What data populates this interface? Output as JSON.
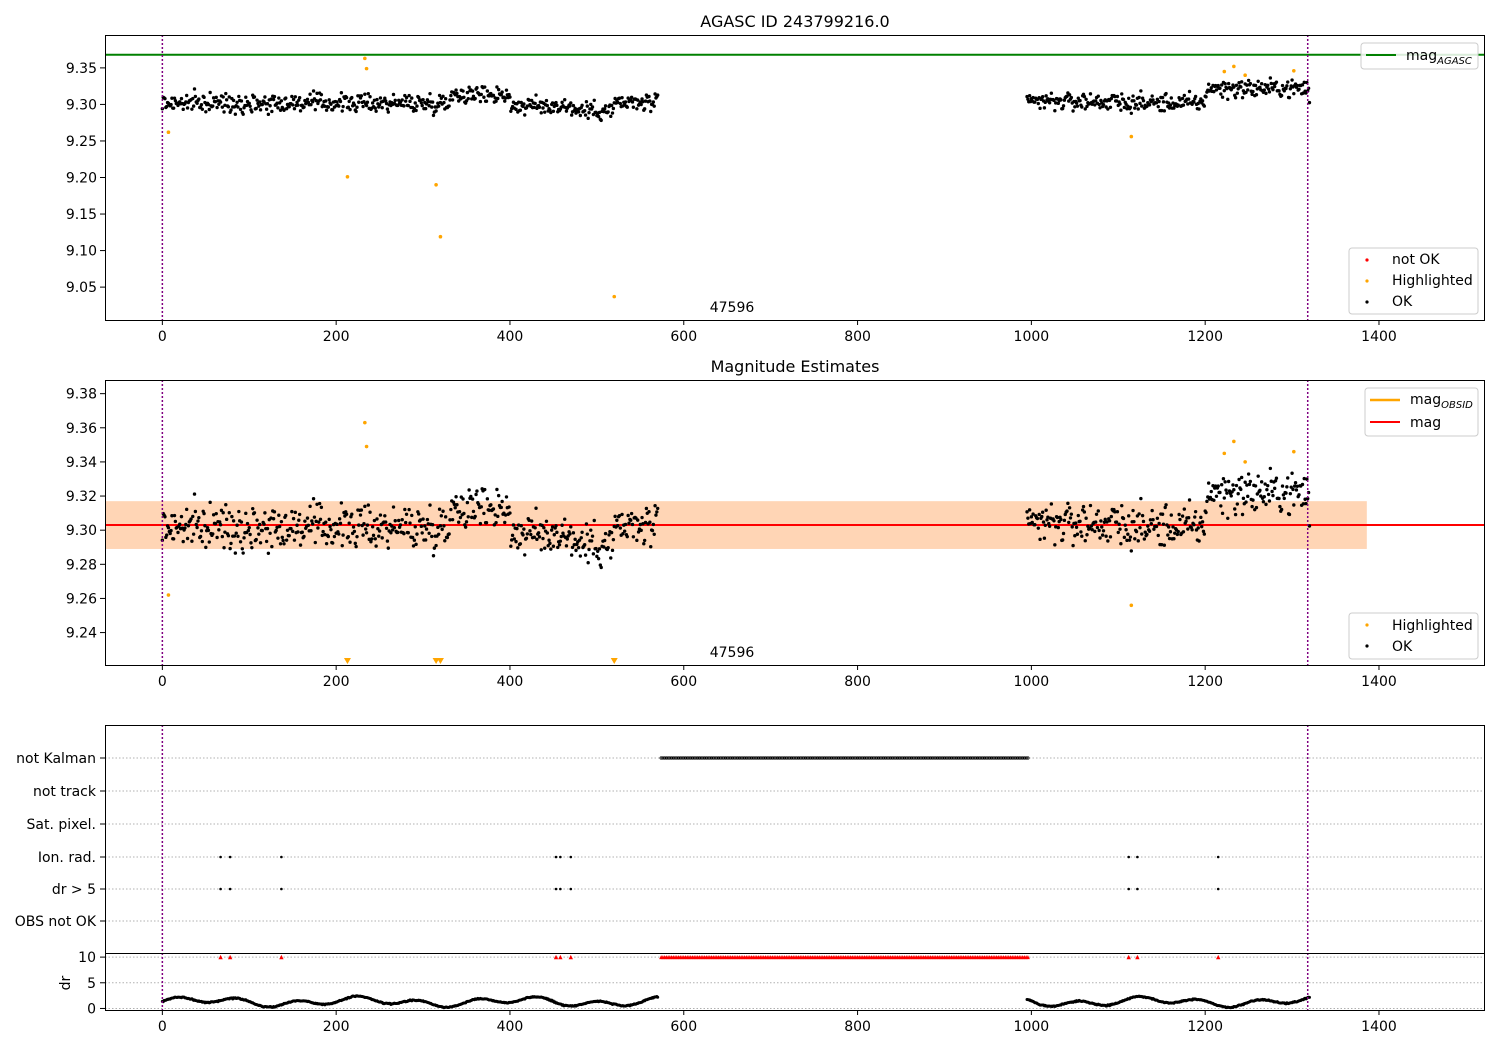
{
  "chart_data": [
    {
      "type": "scatter",
      "title": "AGASC ID 243799216.0",
      "annotation": "47596",
      "xlim": [
        -66,
        1522
      ],
      "ylim": [
        9.005,
        9.395
      ],
      "xticks": [
        0,
        200,
        400,
        600,
        800,
        1000,
        1200,
        1400
      ],
      "yticks": [
        9.05,
        9.1,
        9.15,
        9.2,
        9.25,
        9.3,
        9.35
      ],
      "ytick_labels": [
        "9.05",
        "9.10",
        "9.15",
        "9.20",
        "9.25",
        "9.30",
        "9.35"
      ],
      "lines": [
        {
          "name": "mag_AGASC",
          "y": 9.368,
          "color": "#008000"
        }
      ],
      "vlines": [
        0,
        1318
      ],
      "legend_top": [
        {
          "label": "mag",
          "sub": "AGASC",
          "color": "#008000"
        }
      ],
      "legend_bottom": [
        {
          "label": "not OK",
          "color": "#ff0000"
        },
        {
          "label": "Highlighted",
          "color": "#ffa500"
        },
        {
          "label": "OK",
          "color": "#000000"
        }
      ],
      "series": [
        {
          "name": "OK",
          "color": "#000000",
          "segments": [
            [
              0,
              570
            ],
            [
              995,
              1320
            ]
          ],
          "mean": 9.302,
          "spread": 0.016
        },
        {
          "name": "Highlighted",
          "color": "#ffa500",
          "points": [
            [
              7,
              9.262
            ],
            [
              213,
              9.201
            ],
            [
              233,
              9.363
            ],
            [
              235,
              9.349
            ],
            [
              315,
              9.19
            ],
            [
              320,
              9.119
            ],
            [
              520,
              9.037
            ],
            [
              1115,
              9.256
            ],
            [
              1222,
              9.345
            ],
            [
              1233,
              9.352
            ],
            [
              1246,
              9.34
            ],
            [
              1302,
              9.346
            ]
          ]
        }
      ]
    },
    {
      "type": "scatter",
      "title": "Magnitude Estimates",
      "annotation": "47596",
      "xlim": [
        -66,
        1522
      ],
      "ylim": [
        9.221,
        9.388
      ],
      "xticks": [
        0,
        200,
        400,
        600,
        800,
        1000,
        1200,
        1400
      ],
      "yticks": [
        9.24,
        9.26,
        9.28,
        9.3,
        9.32,
        9.34,
        9.36,
        9.38
      ],
      "ytick_labels": [
        "9.24",
        "9.26",
        "9.28",
        "9.30",
        "9.32",
        "9.34",
        "9.36",
        "9.38"
      ],
      "mag": 9.303,
      "band": [
        9.289,
        9.317
      ],
      "band_x": [
        -66,
        1386
      ],
      "vlines": [
        0,
        1318
      ],
      "legend_top": [
        {
          "label": "mag",
          "sub": "OBSID",
          "color": "#ffa500"
        },
        {
          "label": "mag",
          "sub": "",
          "color": "#ff0000"
        }
      ],
      "legend_bottom": [
        {
          "label": "Highlighted",
          "color": "#ffa500"
        },
        {
          "label": "OK",
          "color": "#000000"
        }
      ],
      "offscale_markers_x": [
        213,
        315,
        320,
        520
      ],
      "series": [
        {
          "name": "OK",
          "color": "#000000",
          "segments": [
            [
              0,
              570
            ],
            [
              995,
              1320
            ]
          ],
          "mean": 9.302,
          "spread": 0.016
        },
        {
          "name": "Highlighted",
          "color": "#ffa500",
          "points": [
            [
              7,
              9.262
            ],
            [
              233,
              9.363
            ],
            [
              235,
              9.349
            ],
            [
              1115,
              9.256
            ],
            [
              1222,
              9.345
            ],
            [
              1233,
              9.352
            ],
            [
              1246,
              9.34
            ],
            [
              1302,
              9.346
            ]
          ]
        }
      ]
    },
    {
      "type": "scatter",
      "title": "",
      "xlim": [
        -66,
        1522
      ],
      "xticks": [
        0,
        200,
        400,
        600,
        800,
        1000,
        1200,
        1400
      ],
      "vlines": [
        0,
        1318
      ],
      "flag_rows": [
        "not Kalman",
        "not track",
        "Sat. pixel.",
        "Ion. rad.",
        "dr > 5",
        "OBS not OK"
      ],
      "flags": {
        "not Kalman": {
          "range": [
            574,
            996
          ]
        },
        "Ion. rad.": {
          "points": [
            67,
            78,
            137,
            453,
            458,
            470,
            1112,
            1122,
            1215
          ]
        },
        "dr > 5": {
          "points": [
            67,
            78,
            137,
            453,
            458,
            470,
            1112,
            1122,
            1215
          ]
        }
      },
      "dr": {
        "ylabel": "dr",
        "ylim": [
          -0.3,
          10.8
        ],
        "yticks": [
          0,
          5,
          10
        ],
        "ytick_labels": [
          "0",
          "5",
          "10"
        ],
        "clip_value": 10,
        "clipped_x": [
          67,
          78,
          137,
          453,
          458,
          470,
          1112,
          1122,
          1215
        ],
        "clipped_range": [
          574,
          996
        ],
        "segments": [
          [
            0,
            570
          ],
          [
            995,
            1320
          ]
        ],
        "mean": 1.3,
        "spread": 0.7
      }
    }
  ]
}
